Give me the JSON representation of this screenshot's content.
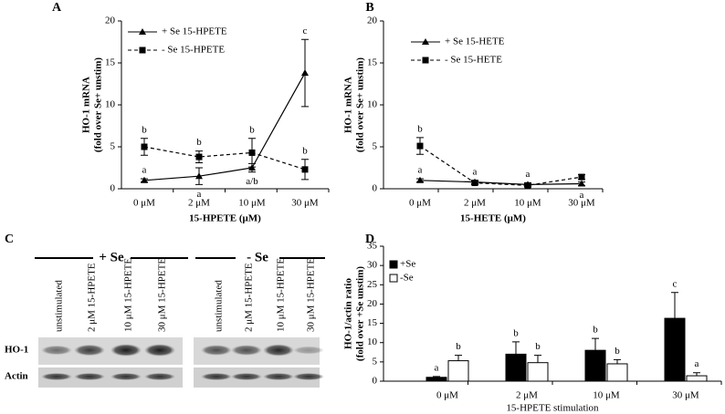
{
  "chart_data": [
    {
      "type": "line",
      "panel": "A",
      "ylabel": [
        "HO-1 mRNA",
        "(fold over Se+ unstim)"
      ],
      "xlabel": "15-HPETE (μM)",
      "categories": [
        "0 μM",
        "2 μM",
        "10 μM",
        "30 μM"
      ],
      "ylim": [
        0,
        20
      ],
      "yticks": [
        0,
        5,
        10,
        15,
        20
      ],
      "legend": "top-left",
      "series": [
        {
          "name": "+ Se 15-HPETE",
          "color": "#000000",
          "dashed": false,
          "marker": "triangle",
          "values": [
            1.0,
            1.5,
            2.5,
            13.8
          ],
          "errors": [
            0.2,
            1.0,
            0.5,
            4.0
          ],
          "letters": [
            "a",
            "a",
            "a/b",
            "c"
          ]
        },
        {
          "name": "- Se 15-HPETE",
          "color": "#000000",
          "dashed": true,
          "marker": "square",
          "values": [
            5.0,
            3.8,
            4.3,
            2.3
          ],
          "errors": [
            1.0,
            0.7,
            1.7,
            1.2
          ],
          "letters": [
            "b",
            "b",
            "b",
            "b"
          ]
        }
      ]
    },
    {
      "type": "line",
      "panel": "B",
      "ylabel": [
        "HO-1 mRNA",
        "(fold over Se+ unstim)"
      ],
      "xlabel": "15-HETE (μM)",
      "categories": [
        "0 μM",
        "2 μM",
        "10 μM",
        "30 μM"
      ],
      "ylim": [
        0,
        20
      ],
      "yticks": [
        0,
        5,
        10,
        15,
        20
      ],
      "legend": "top-left",
      "series": [
        {
          "name": "+ Se 15-HETE",
          "color": "#000000",
          "dashed": false,
          "marker": "triangle",
          "values": [
            1.0,
            0.8,
            0.5,
            0.6
          ],
          "errors": [
            0.2,
            0.2,
            0.2,
            0.2
          ],
          "letters": [
            "a",
            "a",
            "a",
            "a"
          ]
        },
        {
          "name": "- Se 15-HETE",
          "color": "#000000",
          "dashed": true,
          "marker": "square",
          "values": [
            5.1,
            0.7,
            0.4,
            1.4
          ],
          "errors": [
            1.0,
            0.2,
            0.2,
            0.3
          ],
          "letters": [
            "b",
            null,
            null,
            null
          ]
        }
      ]
    },
    {
      "type": "bar",
      "panel": "D",
      "ylabel": [
        "HO-1/actin ratio",
        "(fold over +Se unstim)"
      ],
      "xlabel": "15-HPETE stimulation",
      "categories": [
        "0 μM",
        "2 μM",
        "10 μM",
        "30 μM"
      ],
      "ylim": [
        0,
        35
      ],
      "yticks": [
        0,
        5,
        10,
        15,
        20,
        25,
        30,
        35
      ],
      "legend": "top-left",
      "series": [
        {
          "name": "+Se",
          "color": "#000000",
          "values": [
            1.0,
            7.0,
            8.0,
            16.3
          ],
          "errors": [
            0.2,
            3.2,
            3.1,
            6.7
          ],
          "letters": [
            "a",
            "b",
            "b",
            "c"
          ]
        },
        {
          "name": "-Se",
          "color": "#ffffff",
          "values": [
            5.3,
            4.8,
            4.5,
            1.4
          ],
          "errors": [
            1.4,
            1.9,
            1.1,
            0.8
          ],
          "letters": [
            "b",
            "b",
            "b",
            "a"
          ]
        }
      ]
    }
  ],
  "blot": {
    "panel": "C",
    "rows": [
      "HO-1",
      "Actin"
    ],
    "groups": [
      {
        "name": "+ Se",
        "lanes": [
          "unstimulated",
          "2 μM 15-HPETE",
          "10 μM 15-HPETE",
          "30 μM 15-HPETE"
        ]
      },
      {
        "name": "- Se",
        "lanes": [
          "unstimulated",
          "2 μM 15-HPETE",
          "10 μM 15-HPETE",
          "30 μM 15-HPETE"
        ]
      }
    ]
  }
}
